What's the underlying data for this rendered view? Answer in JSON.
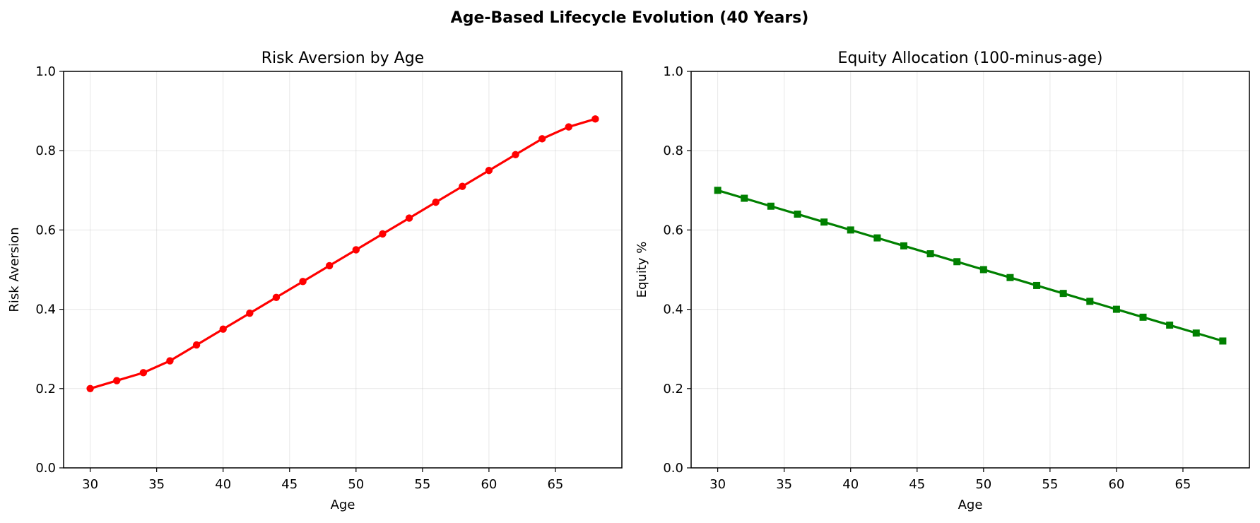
{
  "figure": {
    "title": "Age-Based Lifecycle Evolution (40 Years)"
  },
  "chart_data": [
    {
      "type": "line",
      "title": "Risk Aversion by Age",
      "xlabel": "Age",
      "ylabel": "Risk Aversion",
      "xlim": [
        28,
        70
      ],
      "ylim": [
        0,
        1
      ],
      "xticks": [
        30,
        35,
        40,
        45,
        50,
        55,
        60,
        65
      ],
      "yticks": [
        0.0,
        0.2,
        0.4,
        0.6,
        0.8,
        1.0
      ],
      "xtick_labels": [
        "30",
        "35",
        "40",
        "45",
        "50",
        "55",
        "60",
        "65"
      ],
      "ytick_labels": [
        "0.0",
        "0.2",
        "0.4",
        "0.6",
        "0.8",
        "1.0"
      ],
      "grid": true,
      "series": [
        {
          "color": "#ff0000",
          "marker": "circle",
          "x": [
            30,
            32,
            34,
            36,
            38,
            40,
            42,
            44,
            46,
            48,
            50,
            52,
            54,
            56,
            58,
            60,
            62,
            64,
            66,
            68
          ],
          "y": [
            0.2,
            0.22,
            0.24,
            0.27,
            0.31,
            0.35,
            0.39,
            0.43,
            0.47,
            0.51,
            0.55,
            0.59,
            0.63,
            0.67,
            0.71,
            0.75,
            0.79,
            0.83,
            0.86,
            0.88
          ]
        }
      ]
    },
    {
      "type": "line",
      "title": "Equity Allocation (100-minus-age)",
      "xlabel": "Age",
      "ylabel": "Equity %",
      "xlim": [
        28,
        70
      ],
      "ylim": [
        0,
        1
      ],
      "xticks": [
        30,
        35,
        40,
        45,
        50,
        55,
        60,
        65
      ],
      "yticks": [
        0.0,
        0.2,
        0.4,
        0.6,
        0.8,
        1.0
      ],
      "xtick_labels": [
        "30",
        "35",
        "40",
        "45",
        "50",
        "55",
        "60",
        "65"
      ],
      "ytick_labels": [
        "0.0",
        "0.2",
        "0.4",
        "0.6",
        "0.8",
        "1.0"
      ],
      "grid": true,
      "series": [
        {
          "color": "#008000",
          "marker": "square",
          "x": [
            30,
            32,
            34,
            36,
            38,
            40,
            42,
            44,
            46,
            48,
            50,
            52,
            54,
            56,
            58,
            60,
            62,
            64,
            66,
            68
          ],
          "y": [
            0.7,
            0.68,
            0.66,
            0.64,
            0.62,
            0.6,
            0.58,
            0.56,
            0.54,
            0.52,
            0.5,
            0.48,
            0.46,
            0.44,
            0.42,
            0.4,
            0.38,
            0.36,
            0.34,
            0.32
          ]
        }
      ]
    }
  ]
}
